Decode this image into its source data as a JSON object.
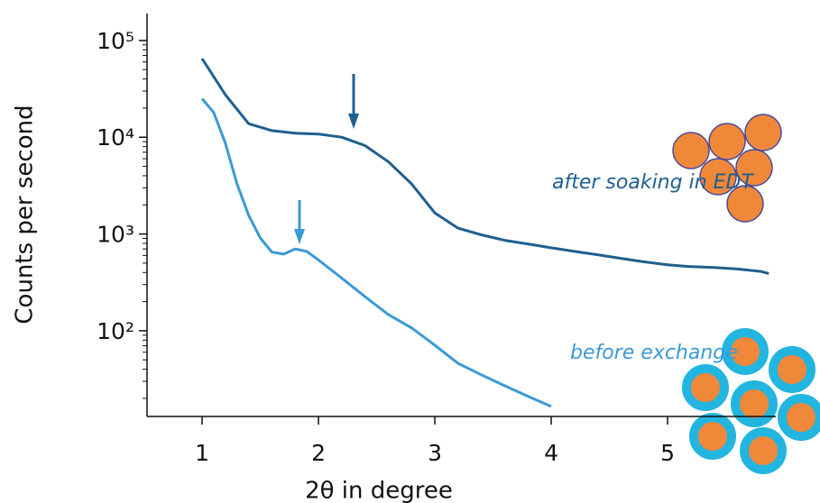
{
  "chart_data": {
    "type": "line",
    "x_label": "2θ in degree",
    "y_label": "Counts per second",
    "log_y": true,
    "xlim": [
      0.527,
      5.93
    ],
    "ylim": [
      13,
      190000
    ],
    "xticks": [
      1,
      2,
      3,
      4,
      5
    ],
    "yticks": [
      {
        "value": 100,
        "label": "10²"
      },
      {
        "value": 1000,
        "label": "10³"
      },
      {
        "value": 10000,
        "label": "10⁴"
      },
      {
        "value": 100000,
        "label": "10⁵"
      }
    ],
    "minor_yticks": [
      20,
      30,
      40,
      50,
      60,
      70,
      80,
      90,
      200,
      300,
      400,
      500,
      600,
      700,
      800,
      900,
      2000,
      3000,
      4000,
      5000,
      6000,
      7000,
      8000,
      9000,
      20000,
      30000,
      40000,
      50000,
      60000,
      70000,
      80000,
      90000
    ],
    "annotations": [
      "after soaking in EDT",
      "before exchange"
    ],
    "series": [
      {
        "name": "after soaking in EDT",
        "color": "#1f5f8f",
        "x": [
          1.0,
          1.2,
          1.4,
          1.6,
          1.8,
          2.0,
          2.2,
          2.4,
          2.6,
          2.8,
          3.0,
          3.2,
          3.4,
          3.6,
          3.8,
          4.0,
          4.2,
          4.4,
          4.6,
          4.8,
          5.0,
          5.2,
          5.4,
          5.6,
          5.8,
          5.87
        ],
        "values": [
          65000,
          27500,
          13800,
          11700,
          11000,
          10800,
          10000,
          8200,
          5600,
          3300,
          1650,
          1150,
          980,
          860,
          790,
          720,
          660,
          610,
          560,
          515,
          480,
          460,
          450,
          435,
          410,
          390
        ]
      },
      {
        "name": "before exchange",
        "color": "#3a9ad6",
        "x": [
          1.0,
          1.1,
          1.2,
          1.3,
          1.4,
          1.5,
          1.6,
          1.7,
          1.8,
          1.9,
          2.0,
          2.2,
          2.4,
          2.6,
          2.8,
          3.0,
          3.2,
          3.4,
          3.6,
          3.8,
          4.0
        ],
        "values": [
          25000,
          18000,
          8700,
          3300,
          1560,
          910,
          650,
          620,
          700,
          660,
          540,
          350,
          225,
          147,
          107,
          71,
          46,
          35,
          27,
          21,
          16.5
        ]
      }
    ]
  }
}
